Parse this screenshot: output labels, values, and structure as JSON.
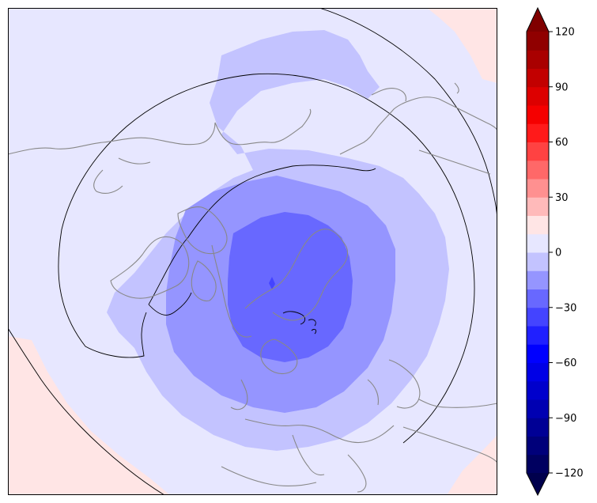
{
  "map": {
    "projection": "north-polar-stereographic",
    "field": "anomaly",
    "regions": [
      {
        "name": "far-field",
        "value": 5
      },
      {
        "name": "outer-ring",
        "value": -5
      },
      {
        "name": "middle-ring",
        "value": -15
      },
      {
        "name": "core",
        "value": -25
      },
      {
        "name": "pole-spot",
        "value": -35
      },
      {
        "name": "corner-top-right",
        "value": 15
      },
      {
        "name": "corner-bottom-left",
        "value": 15
      },
      {
        "name": "corner-bottom-right",
        "value": 15
      }
    ],
    "colors": {
      "coastline": "#888888",
      "contour": "#000000",
      "frame": "#000000"
    }
  },
  "colorbar": {
    "min": -120,
    "max": 120,
    "step": 10,
    "extend": "both",
    "tick_values": [
      -120,
      -90,
      -60,
      -30,
      0,
      30,
      60,
      90,
      120
    ],
    "tick_labels": [
      "−120",
      "−90",
      "−60",
      "−30",
      "0",
      "30",
      "60",
      "90",
      "120"
    ],
    "colors": [
      "#000060",
      "#00007a",
      "#000095",
      "#0000b2",
      "#0000cc",
      "#0000e6",
      "#0000ff",
      "#2020ff",
      "#4444ff",
      "#6868ff",
      "#9595ff",
      "#c3c3ff",
      "#e7e7ff",
      "#ffe5e5",
      "#ffbaba",
      "#ff9090",
      "#ff6868",
      "#ff4242",
      "#ff1a1a",
      "#f50000",
      "#dd0000",
      "#c20000",
      "#a90000",
      "#900000"
    ],
    "under_color": "#00004d",
    "over_color": "#800000"
  }
}
